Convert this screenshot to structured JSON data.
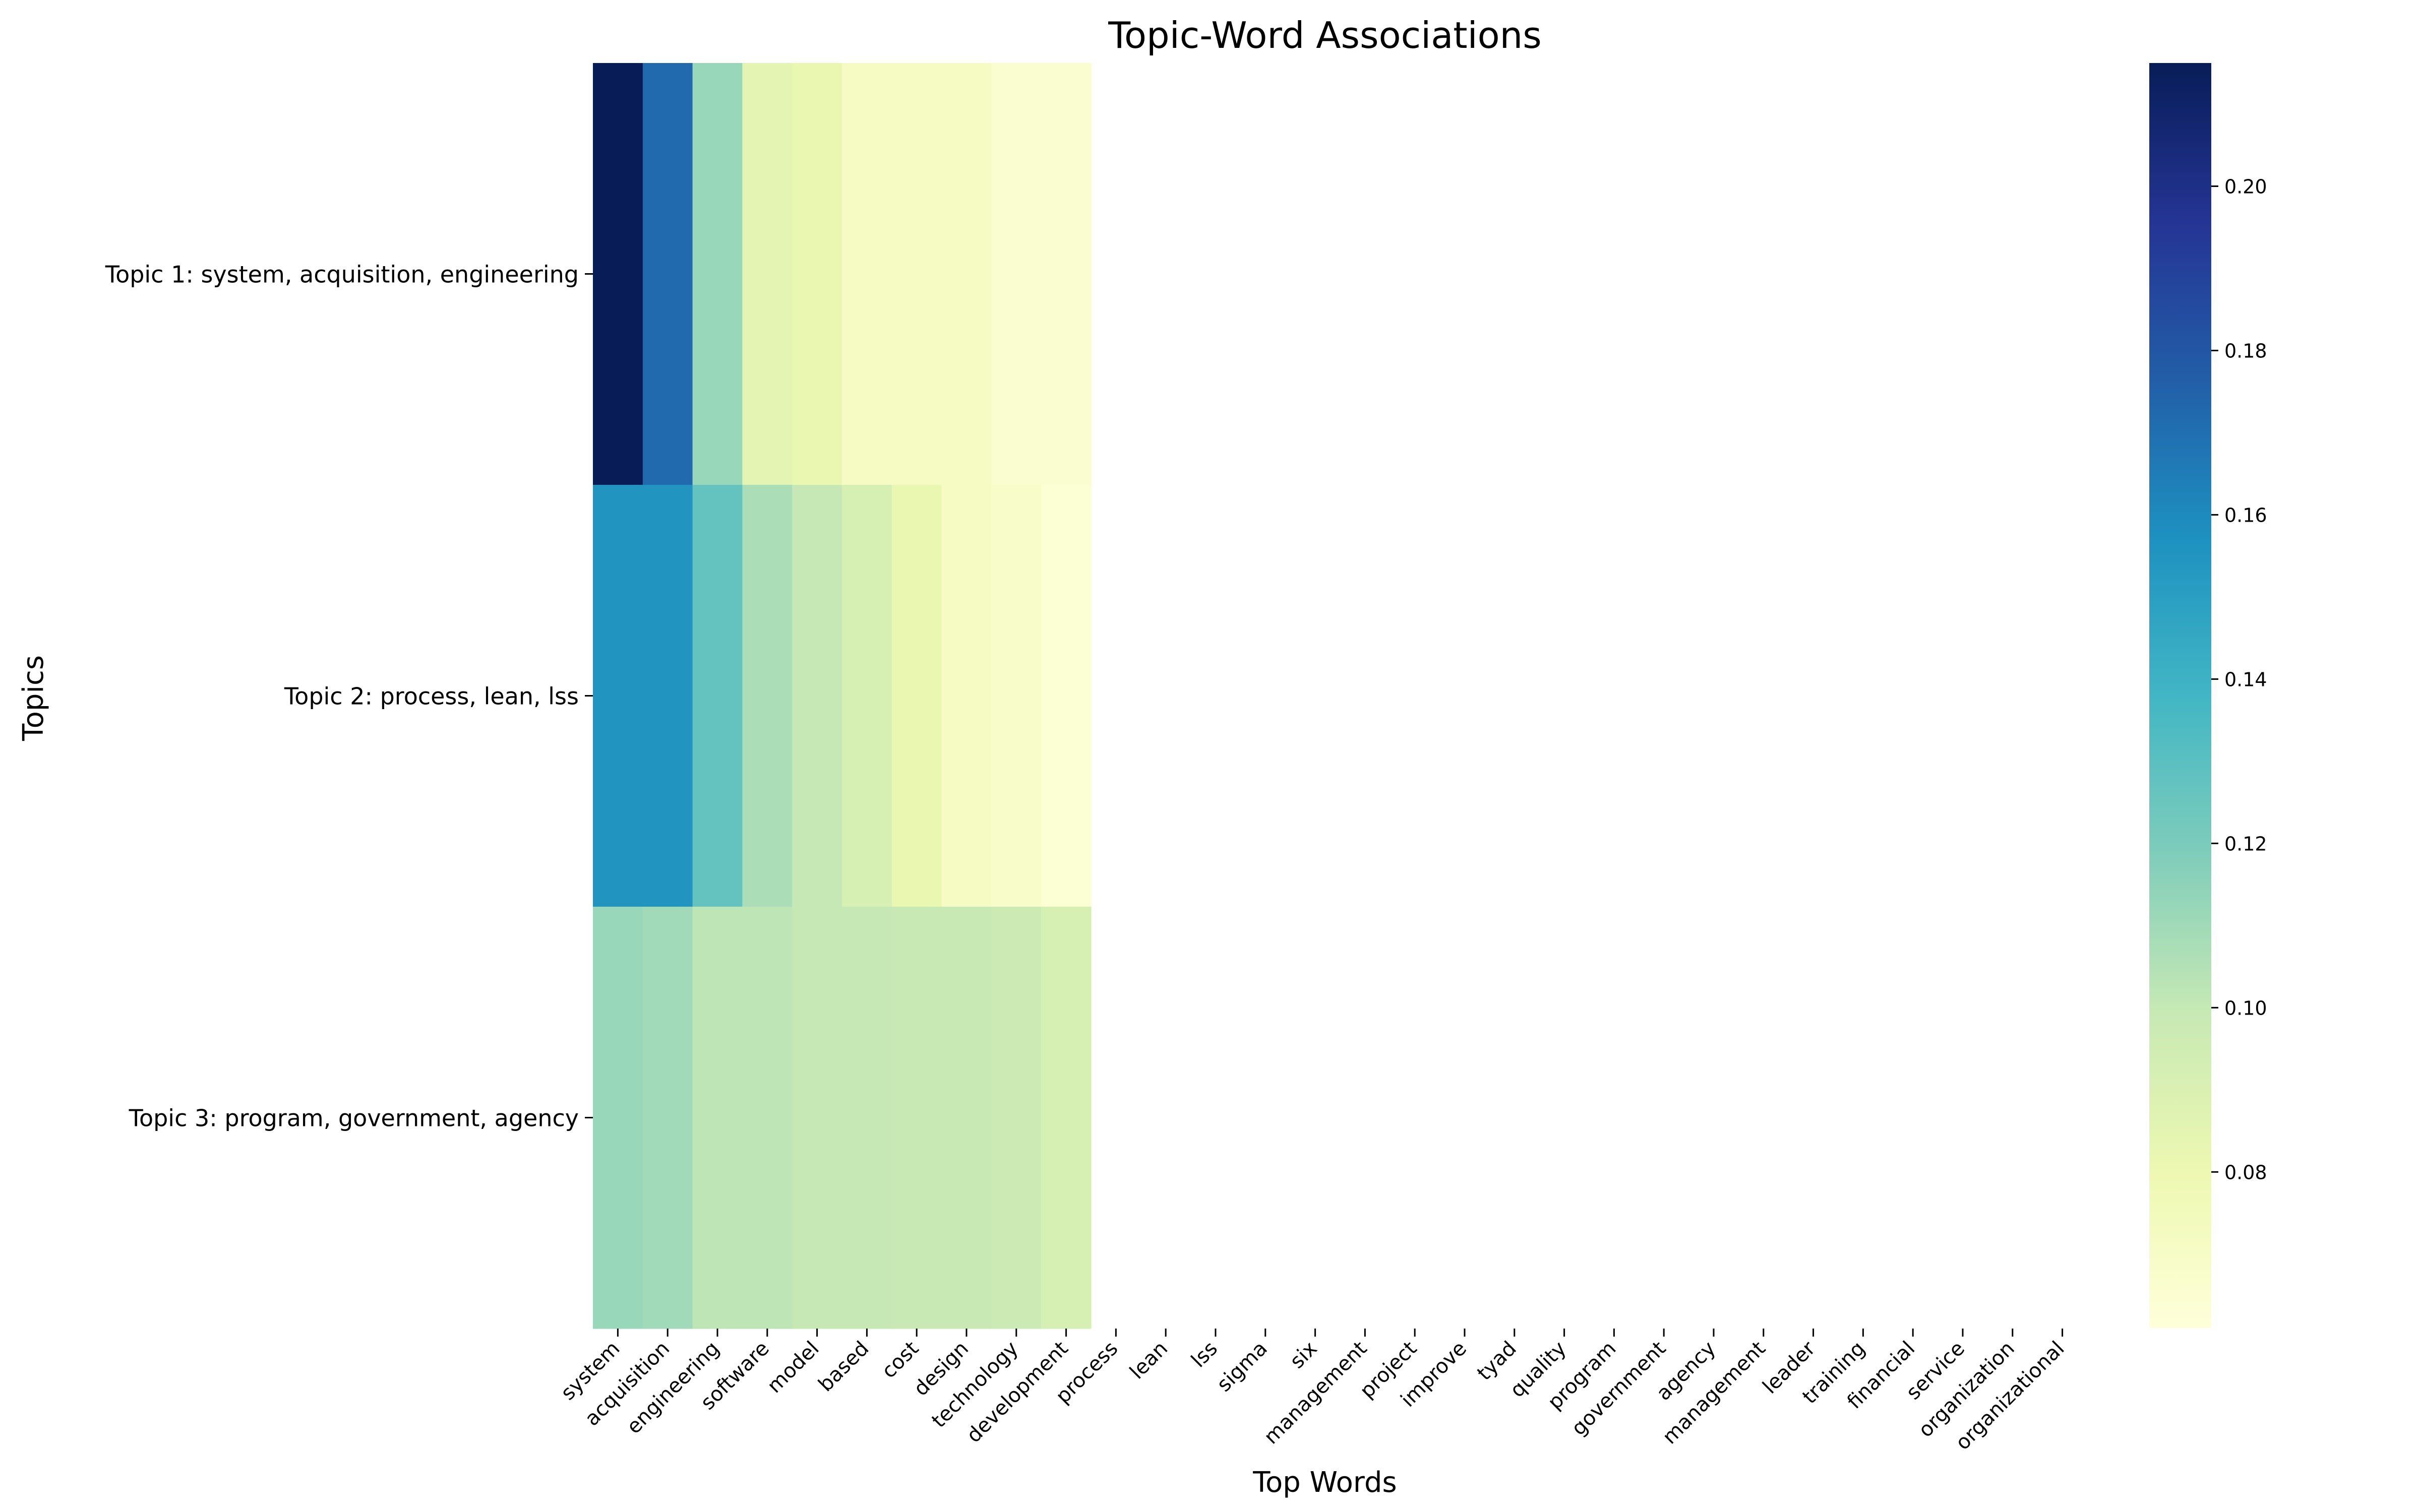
{
  "chart_data": {
    "type": "heatmap",
    "title": "Topic-Word Associations",
    "xlabel": "Top Words",
    "ylabel": "Topics",
    "topics": [
      "Topic 1: system, acquisition, engineering",
      "Topic 2: process, lean, lss",
      "Topic 3: program, government, agency"
    ],
    "words": [
      "system",
      "acquisition",
      "engineering",
      "software",
      "model",
      "based",
      "cost",
      "design",
      "technology",
      "development",
      "process",
      "lean",
      "lss",
      "sigma",
      "six",
      "management",
      "project",
      "improve",
      "tyad",
      "quality",
      "program",
      "government",
      "agency",
      "management",
      "leader",
      "training",
      "financial",
      "service",
      "organization",
      "organizational"
    ],
    "values": [
      [
        0.215,
        0.172,
        0.112,
        0.085,
        0.082,
        0.072,
        0.072,
        0.072,
        0.066,
        0.066
      ],
      [
        0.155,
        0.155,
        0.127,
        0.107,
        0.1,
        0.092,
        0.082,
        0.072,
        0.069,
        0.064
      ],
      [
        0.112,
        0.11,
        0.102,
        0.102,
        0.1,
        0.1,
        0.099,
        0.099,
        0.097,
        0.092
      ]
    ],
    "colorbar": {
      "colormap": "YlGnBu",
      "range": [
        0.061,
        0.215
      ],
      "ticks": [
        "0.08",
        "0.10",
        "0.12",
        "0.14",
        "0.16",
        "0.18",
        "0.20"
      ]
    },
    "grid": false
  }
}
